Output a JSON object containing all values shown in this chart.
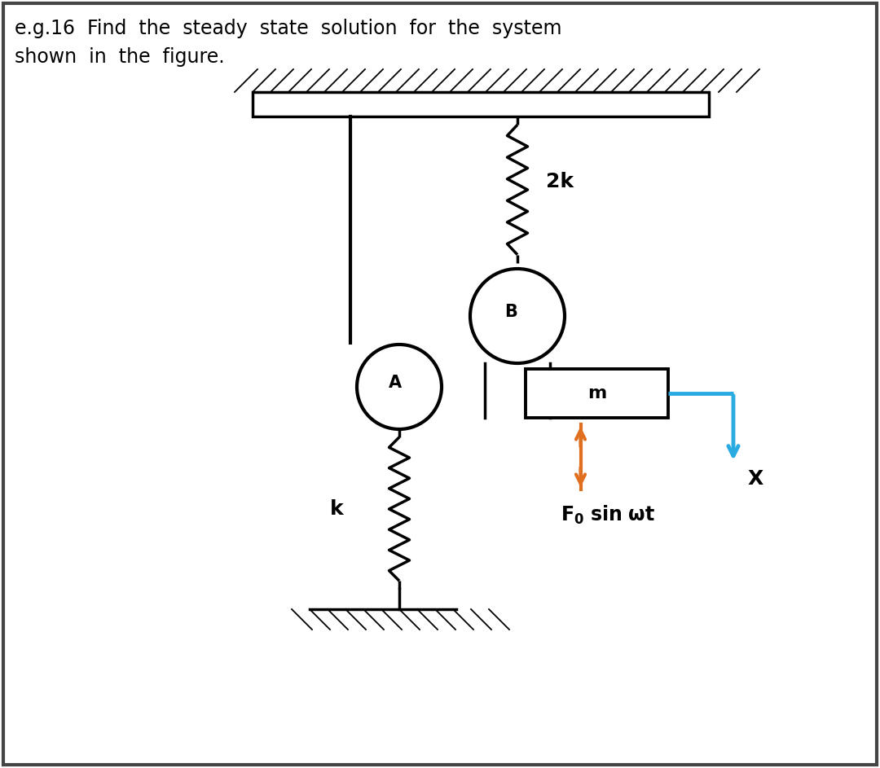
{
  "title_text": "e.g.16  Find  the  steady  state  solution  for  the  system\nshown  in  the  figure.",
  "bg_color": "#ffffff",
  "line_color": "#000000",
  "spring_2k_label": "2k",
  "spring_k_label": "k",
  "mass_label": "m",
  "circle_A_label": "A",
  "circle_B_label": "B",
  "force_label": "F$_0$ sin $\\omega$t",
  "disp_label": "X",
  "arrow_x_color": "#29ABE2",
  "arrow_force_color": "#E07020",
  "hatch_color": "#000000",
  "border_color": "#444444"
}
